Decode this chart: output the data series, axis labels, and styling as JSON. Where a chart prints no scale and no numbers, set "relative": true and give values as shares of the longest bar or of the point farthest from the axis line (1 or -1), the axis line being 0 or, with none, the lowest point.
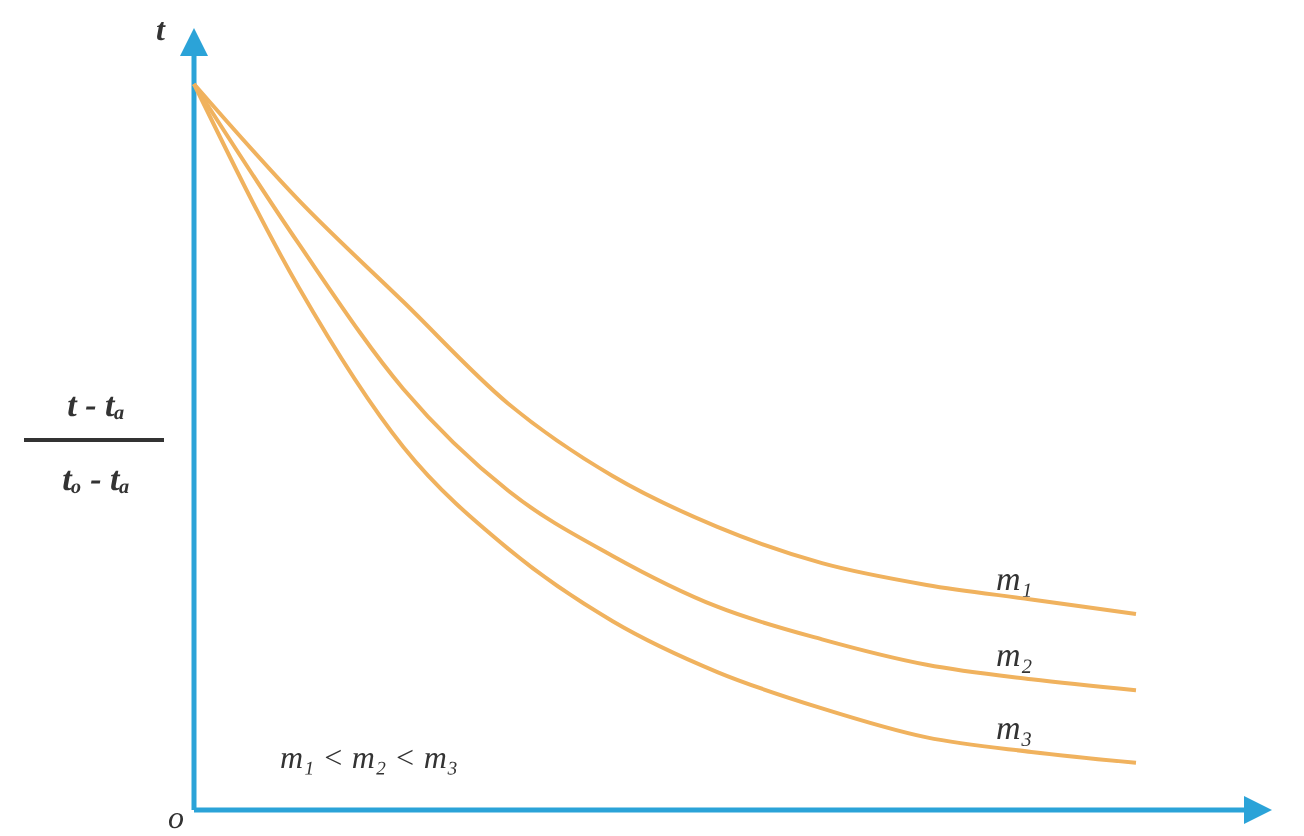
{
  "chart_data": {
    "type": "line",
    "relative": true,
    "ylabel": "t - tₐ\ntₒ - tₐ",
    "categories": [
      null,
      null,
      null,
      null,
      null,
      null,
      null,
      null,
      null,
      null
    ],
    "series": [
      {
        "name": "m₁",
        "color": "#f0b25e",
        "values": [
          1.0,
          0.84,
          0.7,
          0.56,
          0.46,
          0.39,
          0.34,
          0.31,
          0.29,
          0.27
        ]
      },
      {
        "name": "m₂",
        "color": "#f0b25e",
        "values": [
          1.0,
          0.78,
          0.58,
          0.44,
          0.35,
          0.28,
          0.235,
          0.2,
          0.18,
          0.165
        ]
      },
      {
        "name": "m₃",
        "color": "#f0b25e",
        "values": [
          1.0,
          0.72,
          0.5,
          0.36,
          0.26,
          0.19,
          0.14,
          0.1,
          0.08,
          0.065
        ]
      }
    ],
    "annotations": [
      "t",
      "o",
      "m₁ < m₂ < m₃"
    ],
    "grid": false,
    "legend": false,
    "marker": "none",
    "line_style": "solid"
  }
}
